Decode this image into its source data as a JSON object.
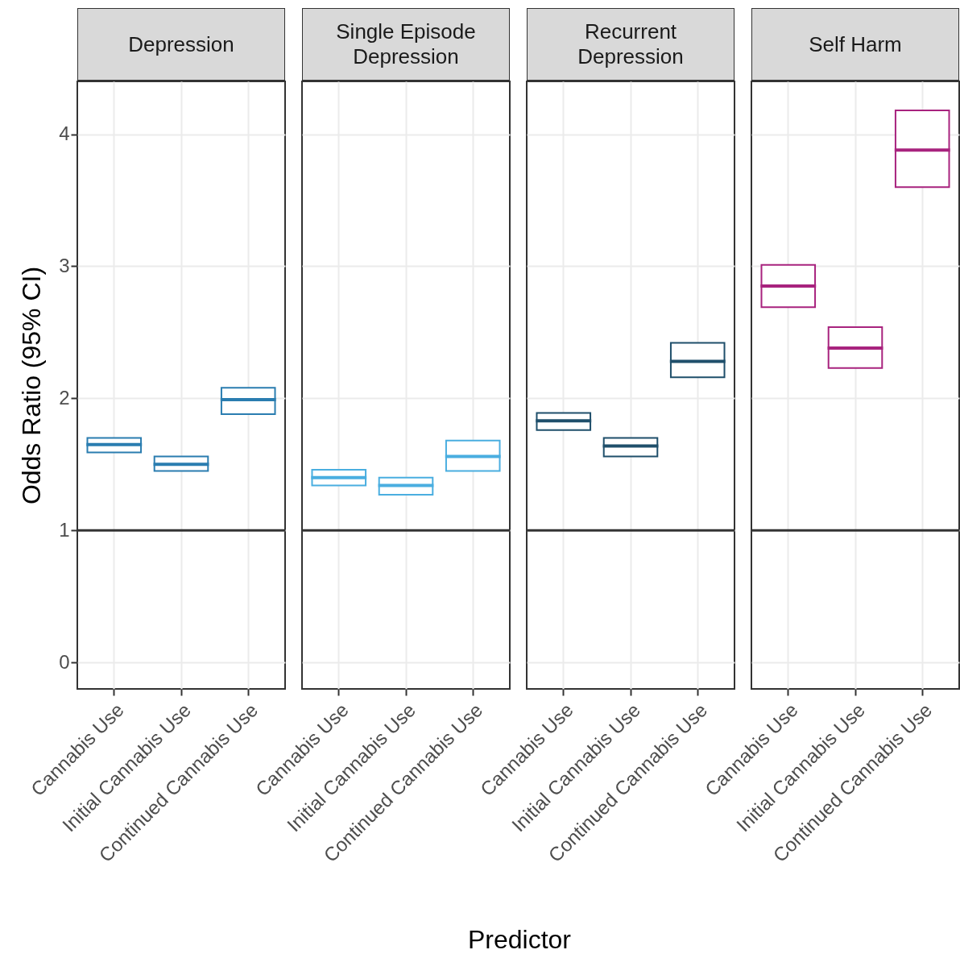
{
  "chart_data": [
    {
      "type": "box",
      "title": "Depression",
      "ylabel": "Odds Ratio (95% CI)",
      "categories": [
        "Cannabis Use",
        "Initial Cannabis Use",
        "Continued Cannabis Use"
      ],
      "color": "#2a7db0",
      "boxes": [
        {
          "low": 1.59,
          "q1": 1.59,
          "median": 1.65,
          "q3": 1.7,
          "high": 1.7
        },
        {
          "low": 1.45,
          "q1": 1.45,
          "median": 1.5,
          "q3": 1.56,
          "high": 1.56
        },
        {
          "low": 1.88,
          "q1": 1.88,
          "median": 1.99,
          "q3": 2.08,
          "high": 2.08
        }
      ],
      "ylim": [
        -0.2,
        4.4
      ],
      "yticks": [
        0,
        1,
        2,
        3,
        4
      ],
      "grid": true,
      "ref_lines": [
        {
          "axis": "y",
          "value": 1
        }
      ]
    },
    {
      "type": "box",
      "title": "Single Episode Depression",
      "annotations": [
        "Predictor"
      ],
      "categories": [
        "Cannabis Use",
        "Initial Cannabis Use",
        "Continued Cannabis Use"
      ],
      "color": "#4aaee0",
      "boxes": [
        {
          "low": 1.34,
          "q1": 1.34,
          "median": 1.4,
          "q3": 1.46,
          "high": 1.46
        },
        {
          "low": 1.27,
          "q1": 1.27,
          "median": 1.34,
          "q3": 1.4,
          "high": 1.4
        },
        {
          "low": 1.45,
          "q1": 1.45,
          "median": 1.56,
          "q3": 1.68,
          "high": 1.68
        }
      ],
      "ylim": [
        -0.2,
        4.4
      ],
      "yticks": [
        0,
        1,
        2,
        3,
        4
      ],
      "grid": true,
      "tick_labels": "x",
      "ref_lines": [
        {
          "axis": "y",
          "value": 1
        }
      ]
    },
    {
      "type": "box",
      "title": "Recurrent Depression",
      "categories": [
        "Cannabis Use",
        "Initial Cannabis Use",
        "Continued Cannabis Use"
      ],
      "color": "#1f4f6b",
      "boxes": [
        {
          "low": 1.76,
          "q1": 1.76,
          "median": 1.83,
          "q3": 1.89,
          "high": 1.89
        },
        {
          "low": 1.56,
          "q1": 1.56,
          "median": 1.64,
          "q3": 1.7,
          "high": 1.7
        },
        {
          "low": 2.16,
          "q1": 2.16,
          "median": 2.28,
          "q3": 2.42,
          "high": 2.42
        }
      ],
      "ylim": [
        -0.2,
        4.4
      ],
      "yticks": [
        0,
        1,
        2,
        3,
        4
      ],
      "grid": true,
      "tick_labels": "x",
      "ref_lines": [
        {
          "axis": "y",
          "value": 1
        }
      ]
    },
    {
      "type": "box",
      "title": "Self Harm",
      "categories": [
        "Cannabis Use",
        "Initial Cannabis Use",
        "Continued Cannabis Use"
      ],
      "color": "#a8237e",
      "boxes": [
        {
          "low": 2.69,
          "q1": 2.69,
          "median": 2.85,
          "q3": 3.01,
          "high": 3.01
        },
        {
          "low": 2.23,
          "q1": 2.23,
          "median": 2.38,
          "q3": 2.54,
          "high": 2.54
        },
        {
          "low": 3.6,
          "q1": 3.6,
          "median": 3.88,
          "q3": 4.18,
          "high": 4.18
        }
      ],
      "ylim": [
        -0.2,
        4.4
      ],
      "yticks": [
        0,
        1,
        2,
        3,
        4
      ],
      "grid": true,
      "tick_labels": "x",
      "ref_lines": [
        {
          "axis": "y",
          "value": 1
        }
      ]
    }
  ]
}
